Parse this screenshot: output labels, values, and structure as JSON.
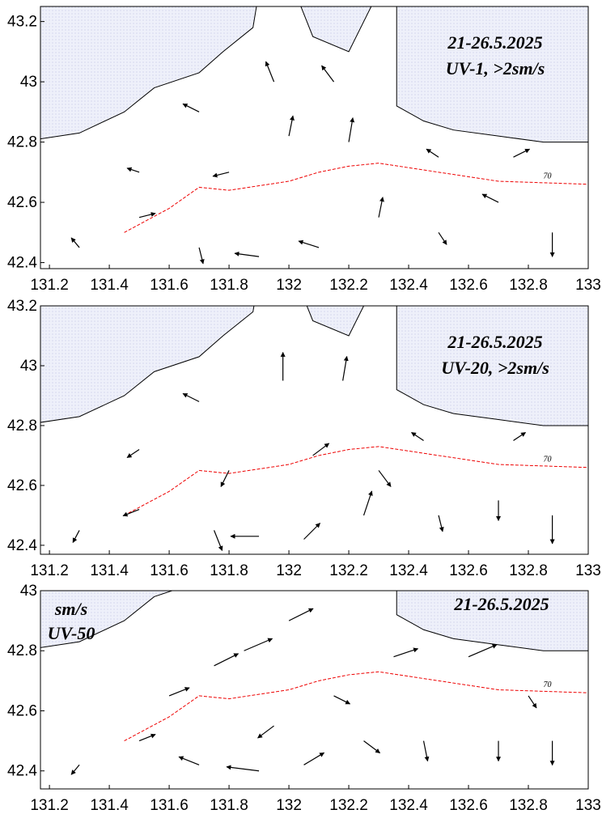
{
  "chart_data": [
    {
      "type": "vector",
      "title": "21-26.5.2025",
      "subtitle": "UV-1, >2sm/s",
      "contour_label": "70",
      "xlim": [
        131.17,
        133
      ],
      "ylim": [
        42.38,
        43.25
      ],
      "xticks": [
        131.2,
        131.4,
        131.6,
        131.8,
        132,
        132.2,
        132.4,
        132.6,
        132.8,
        133
      ],
      "yticks": [
        42.4,
        42.6,
        42.8,
        43,
        43.2
      ],
      "vectors": [
        {
          "lon": 131.3,
          "lat": 42.45,
          "u": -10,
          "v": 12
        },
        {
          "lon": 131.5,
          "lat": 42.55,
          "u": 20,
          "v": 5
        },
        {
          "lon": 131.7,
          "lat": 42.45,
          "u": 5,
          "v": -20
        },
        {
          "lon": 131.9,
          "lat": 42.42,
          "u": -30,
          "v": 4
        },
        {
          "lon": 132.1,
          "lat": 42.45,
          "u": -25,
          "v": 8
        },
        {
          "lon": 132.3,
          "lat": 42.55,
          "u": 5,
          "v": 25
        },
        {
          "lon": 132.5,
          "lat": 42.5,
          "u": 10,
          "v": -15
        },
        {
          "lon": 132.7,
          "lat": 42.6,
          "u": -20,
          "v": 10
        },
        {
          "lon": 132.88,
          "lat": 42.5,
          "u": 0,
          "v": -30
        },
        {
          "lon": 131.5,
          "lat": 42.7,
          "u": -15,
          "v": 5
        },
        {
          "lon": 131.8,
          "lat": 42.7,
          "u": -20,
          "v": -5
        },
        {
          "lon": 132.0,
          "lat": 42.82,
          "u": 5,
          "v": 25
        },
        {
          "lon": 132.2,
          "lat": 42.8,
          "u": 5,
          "v": 30
        },
        {
          "lon": 132.5,
          "lat": 42.75,
          "u": -15,
          "v": 10
        },
        {
          "lon": 132.75,
          "lat": 42.75,
          "u": 20,
          "v": 10
        },
        {
          "lon": 131.95,
          "lat": 43.0,
          "u": -10,
          "v": 25
        },
        {
          "lon": 132.15,
          "lat": 43.0,
          "u": -15,
          "v": 20
        },
        {
          "lon": 131.7,
          "lat": 42.9,
          "u": -20,
          "v": 10
        }
      ]
    },
    {
      "type": "vector",
      "title": "21-26.5.2025",
      "subtitle": "UV-20, >2sm/s",
      "contour_label": "70",
      "xlim": [
        131.17,
        133
      ],
      "ylim": [
        42.37,
        43.2
      ],
      "xticks": [
        131.2,
        131.4,
        131.6,
        131.8,
        132,
        132.2,
        132.4,
        132.6,
        132.8,
        133
      ],
      "yticks": [
        42.4,
        42.6,
        42.8,
        43,
        43.2
      ],
      "vectors": [
        {
          "lon": 131.3,
          "lat": 42.45,
          "u": -8,
          "v": -15
        },
        {
          "lon": 131.5,
          "lat": 42.52,
          "u": -20,
          "v": -8
        },
        {
          "lon": 131.75,
          "lat": 42.45,
          "u": 10,
          "v": -25
        },
        {
          "lon": 131.9,
          "lat": 42.43,
          "u": -35,
          "v": 0
        },
        {
          "lon": 132.05,
          "lat": 42.42,
          "u": 20,
          "v": 20
        },
        {
          "lon": 132.25,
          "lat": 42.5,
          "u": 10,
          "v": 30
        },
        {
          "lon": 132.5,
          "lat": 42.5,
          "u": 5,
          "v": -20
        },
        {
          "lon": 132.7,
          "lat": 42.55,
          "u": 0,
          "v": -25
        },
        {
          "lon": 132.88,
          "lat": 42.5,
          "u": 0,
          "v": -35
        },
        {
          "lon": 131.5,
          "lat": 42.72,
          "u": -15,
          "v": -10
        },
        {
          "lon": 131.8,
          "lat": 42.65,
          "u": -10,
          "v": -20
        },
        {
          "lon": 131.98,
          "lat": 42.95,
          "u": 0,
          "v": 35
        },
        {
          "lon": 132.18,
          "lat": 42.95,
          "u": 5,
          "v": 30
        },
        {
          "lon": 132.45,
          "lat": 42.75,
          "u": -15,
          "v": 10
        },
        {
          "lon": 132.75,
          "lat": 42.75,
          "u": 15,
          "v": 10
        },
        {
          "lon": 131.7,
          "lat": 42.88,
          "u": -20,
          "v": 10
        },
        {
          "lon": 132.08,
          "lat": 42.7,
          "u": 20,
          "v": 15
        },
        {
          "lon": 132.3,
          "lat": 42.65,
          "u": 15,
          "v": -20
        }
      ]
    },
    {
      "type": "vector",
      "title": "21-26.5.2025",
      "annotations": [
        "sm/s",
        "UV-50"
      ],
      "contour_label": "70",
      "xlim": [
        131.17,
        133
      ],
      "ylim": [
        42.34,
        43
      ],
      "xticks": [
        131.2,
        131.4,
        131.6,
        131.8,
        132,
        132.2,
        132.4,
        132.6,
        132.8,
        133
      ],
      "yticks": [
        42.4,
        42.6,
        42.8,
        43
      ],
      "vectors": [
        {
          "lon": 131.3,
          "lat": 42.42,
          "u": -10,
          "v": -12
        },
        {
          "lon": 131.5,
          "lat": 42.5,
          "u": 20,
          "v": 8
        },
        {
          "lon": 131.7,
          "lat": 42.42,
          "u": -25,
          "v": 10
        },
        {
          "lon": 131.9,
          "lat": 42.4,
          "u": -40,
          "v": 5
        },
        {
          "lon": 132.05,
          "lat": 42.42,
          "u": 25,
          "v": 15
        },
        {
          "lon": 132.25,
          "lat": 42.5,
          "u": 20,
          "v": -15
        },
        {
          "lon": 132.45,
          "lat": 42.5,
          "u": 5,
          "v": -25
        },
        {
          "lon": 132.7,
          "lat": 42.5,
          "u": 0,
          "v": -25
        },
        {
          "lon": 132.88,
          "lat": 42.5,
          "u": 0,
          "v": -30
        },
        {
          "lon": 131.6,
          "lat": 42.65,
          "u": 25,
          "v": 10
        },
        {
          "lon": 131.85,
          "lat": 42.8,
          "u": 35,
          "v": 15
        },
        {
          "lon": 132.0,
          "lat": 42.9,
          "u": 30,
          "v": 15
        },
        {
          "lon": 132.35,
          "lat": 42.78,
          "u": 30,
          "v": 10
        },
        {
          "lon": 132.6,
          "lat": 42.78,
          "u": 35,
          "v": 15
        },
        {
          "lon": 132.8,
          "lat": 42.65,
          "u": 10,
          "v": -15
        },
        {
          "lon": 131.75,
          "lat": 42.75,
          "u": 30,
          "v": 15
        },
        {
          "lon": 132.15,
          "lat": 42.65,
          "u": 20,
          "v": -10
        },
        {
          "lon": 131.95,
          "lat": 42.55,
          "u": -20,
          "v": -15
        }
      ]
    }
  ]
}
